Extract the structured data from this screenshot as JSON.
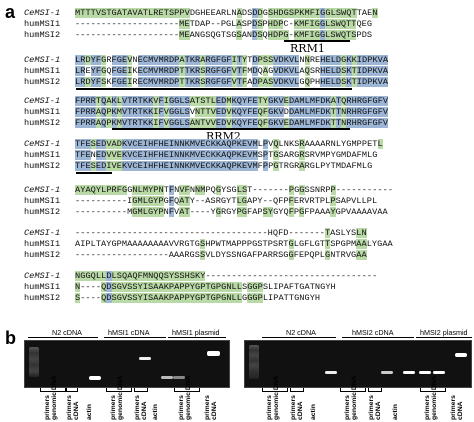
{
  "panels": {
    "a": "a",
    "b": "b"
  },
  "alignment": {
    "names": [
      "CeMSI-1",
      "humMSI1",
      "humMSI2"
    ],
    "domains": [
      "RRM1",
      "RRM2"
    ],
    "blocks": [
      [
        "MTTTVSTGATAVATLRETSPPVDGHEEARLNADSDDGSHDGSPKMFIGGLSWQTTAEN",
        "--------------------METDAP--PGLASPDSPHDPC-KMFIGGLSWQTTQEG",
        "--------------------MEANGSQGTSGSANDSQHDPG-KMFIGGLSWQTSPDS"
      ],
      [
        "LRDYFGRFGEVNECMVMRDPATKRARGFGFITYTDPSSVDKVLNNREHELDGKKIDPKVA",
        "LREYFGQFGEIKECMVMRDPTTKRSRGFGFVTFMDQAGVDKVLAQSRHELDSKTIDPKVA",
        "LRDYFSKFGEIRECMVMRDPTTKRSRGFGFVTFADPASVDKVLGQPHHELDSKTIDPKVA"
      ],
      [
        "FPRRTQAKLVTRTKKVFIGGLSATSTLEDMKQYFETYGKVEDAMLMFDKATQRHRGFGFV",
        "FPRRAQPKMVTRTKKIFVGGLSVNTTVEDVKQYFEQFGKVDDAMLMFDKTTNRHRGFGFV",
        "FPRRAQPKMVTRTKKIFVGGLSANTVVEDVKQYFEQFGKVEDAMLMFDKTTNRHRGFGFV"
      ],
      [
        "TFESEDVADKVCEIHFHEINNKMVECKKAQPKEVMLPVQLNKSRAAAARNLYGMPPETL",
        "TFENEDVVEKVCEIHFHEINNKMVECKKAQPKEVMSPTGSARGRSRVMPYGMDAFMLG",
        "TFESEDIVEKVCEIHFHEINNKMVECKKAQPKEVMFPPGTRGRARGLPYTMDAFMLG"
      ],
      [
        "AYAQYLPRFGGNLMYPNTFNVFNNMPQGYSGLST-------PGGSSNRPP-----------",
        "----------IGMLGYPGFQATY--ASRGYTLGAPY--QFPFERVRTPLPSAPVLLPL",
        "----------MGMLGYPNFVAT----YGRGYPGFAPSYGYQFPGFPAAAYGPVAAAAVAA"
      ],
      [
        "-------------------------------------HQFD-------TASLYSLN",
        "AIPLTAYGPMAAAAAAAAVVRGTGSHPWTMAPPPGSTPSRTGLGFLGTTSPGPMAALYGAA",
        "------------------AAARGSSVLDYSSNGAFPARRSGGFEPQPLGNTRVGAA"
      ],
      [
        "NGGQLLDLSQAQFMNQQSYSSHSKY---------------------------------",
        "N----QDSGVSSYISAAKPAPPYGPTGPGNLLSGGPSLIPAFTGATNGYH",
        "S----QDSGVSSYISAAKPAPPYGPTGPGNLLGGGPLIPATTGNGYH"
      ]
    ]
  },
  "gels": [
    {
      "groups": [
        "N2 cDNA",
        "hMSI1 cDNA",
        "hMSI1 plasmid"
      ],
      "lanes": [
        "primers\ngenomic DNA",
        "primers\ncDNA",
        "actin"
      ]
    },
    {
      "groups": [
        "N2 cDNA",
        "hMSI2 cDNA",
        "hMSI2 plasmid"
      ],
      "lanes": [
        "primers\ngenomic DNA",
        "primers\ncDNA",
        "actin"
      ]
    }
  ],
  "colors": {
    "conserved_identical": "#9db6d6",
    "conserved_similar": "#b9d9a6",
    "gel_background": "#111111"
  }
}
